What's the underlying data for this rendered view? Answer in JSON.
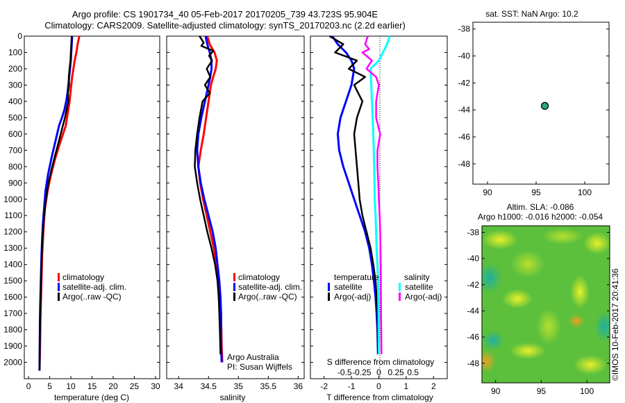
{
  "title": {
    "line1": "Argo profile: CS 1901734_40 05-Feb-2017 20170205_739 43.723S 95.904E",
    "line2": "Climatology: CARS2009. Satellite-adjusted climatology: synTS_20170203.nc (2.2d earlier)"
  },
  "colors": {
    "climatology": "#ff0000",
    "satellite_adj": "#0000ff",
    "argo": "#000000",
    "sal_satellite": "#00ffff",
    "sal_argo": "#ff00ff"
  },
  "depth_ticks": [
    "0",
    "100",
    "200",
    "300",
    "400",
    "500",
    "600",
    "700",
    "800",
    "900",
    "1000",
    "1100",
    "1200",
    "1300",
    "1400",
    "1500",
    "1600",
    "1700",
    "1800",
    "1900",
    "2000"
  ],
  "temperature_panel": {
    "xlabel": "temperature (deg C)",
    "xticks": [
      "0",
      "5",
      "10",
      "15",
      "20",
      "25",
      "30"
    ],
    "legend": [
      "climatology",
      "satellite-adj. clim.",
      "Argo(..raw -QC)"
    ]
  },
  "salinity_panel": {
    "xlabel": "salinity",
    "xticks": [
      "34",
      "34.5",
      "35",
      "35.5",
      "36"
    ],
    "legend": [
      "climatology",
      "satellite-adj. clim.",
      "Argo(..raw -QC)"
    ],
    "note1": "Argo Australia",
    "note2": "PI: Susan Wijffels"
  },
  "diff_panel": {
    "xlabel": "T difference from climatology",
    "xticks": [
      "-2",
      "-1",
      "0",
      "1",
      "2"
    ],
    "top_label": "S difference from climatology",
    "top_ticks": [
      "-0.5",
      "-0.25",
      "0",
      "0.25",
      "0.5"
    ],
    "legend_temp_title": "temperature",
    "legend_sal_title": "salinity",
    "legend_temp": [
      "satellite",
      "Argo(-adj)"
    ],
    "legend_sal": [
      "satellite",
      "Argo(-adj)"
    ]
  },
  "map_top": {
    "title": "sat. SST: NaN Argo: 10.2",
    "yticks": [
      "-38",
      "-40",
      "-42",
      "-44",
      "-46",
      "-48"
    ],
    "xticks": [
      "90",
      "95",
      "100"
    ],
    "marker_lon": 95.9,
    "marker_lat": -43.7
  },
  "map_bottom": {
    "title1": "Altim. SLA: -0.086",
    "title2": "Argo h1000: -0.016 h2000: -0.054",
    "yticks": [
      "-38",
      "-40",
      "-42",
      "-44",
      "-46",
      "-48"
    ],
    "xticks": [
      "90",
      "95",
      "100"
    ]
  },
  "watermark": "©IMOS 10-Feb-2017 20:41:36",
  "chart_data": [
    {
      "type": "line",
      "xlabel": "temperature (deg C)",
      "ylabel": "",
      "xlim": [
        -1,
        31
      ],
      "ylim": [
        2100,
        0
      ],
      "series": [
        {
          "name": "climatology",
          "x": [
            12,
            11.6,
            11.3,
            10.9,
            10.6,
            10.3,
            10.1,
            9.9,
            9.7,
            9.4,
            9.1,
            8.8,
            7.5,
            6.3,
            5.3,
            4.5,
            3.9,
            3.6,
            3.4,
            3.2,
            3.1,
            3.0,
            2.9,
            2.8,
            2.75,
            2.7,
            2.65,
            2.6
          ],
          "y": [
            0,
            50,
            100,
            150,
            200,
            250,
            300,
            350,
            400,
            450,
            500,
            550,
            650,
            750,
            850,
            950,
            1050,
            1150,
            1250,
            1350,
            1450,
            1550,
            1650,
            1750,
            1850,
            1950,
            2000,
            2050
          ]
        },
        {
          "name": "satellite-adj. clim.",
          "x": [
            10.3,
            10.2,
            10.1,
            10.0,
            9.8,
            9.6,
            9.4,
            9.2,
            8.9,
            8.5,
            7.9,
            7.2,
            6.3,
            5.4,
            4.6,
            4.0,
            3.7,
            3.4,
            3.2,
            3.05,
            2.95,
            2.85,
            2.75,
            2.7,
            2.65,
            2.6
          ],
          "y": [
            0,
            50,
            100,
            150,
            200,
            250,
            300,
            350,
            400,
            450,
            500,
            550,
            650,
            750,
            850,
            950,
            1050,
            1150,
            1250,
            1350,
            1450,
            1550,
            1650,
            1750,
            1900,
            2050
          ]
        },
        {
          "name": "Argo(..raw -QC)",
          "x": [
            10.2,
            10.1,
            10.0,
            9.9,
            9.7,
            9.5,
            9.6,
            9.3,
            9.4,
            9.0,
            8.6,
            8.1,
            7.6,
            6.6,
            5.6,
            4.7,
            4.1,
            3.7,
            3.4,
            3.2,
            3.05,
            2.95,
            2.85,
            2.75,
            2.7,
            2.65,
            2.6
          ],
          "y": [
            0,
            50,
            100,
            150,
            200,
            250,
            300,
            350,
            400,
            450,
            500,
            550,
            600,
            700,
            800,
            900,
            1000,
            1100,
            1200,
            1300,
            1400,
            1500,
            1600,
            1700,
            1800,
            1900,
            2050
          ]
        }
      ]
    },
    {
      "type": "line",
      "xlabel": "salinity",
      "ylabel": "",
      "xlim": [
        33.8,
        36.1
      ],
      "ylim": [
        2100,
        0
      ],
      "series": [
        {
          "name": "climatology",
          "x": [
            34.48,
            34.52,
            34.6,
            34.64,
            34.62,
            34.58,
            34.54,
            34.5,
            34.46,
            34.42,
            34.37,
            34.33,
            34.36,
            34.41,
            34.47,
            34.53,
            34.59,
            34.63,
            34.66,
            34.69,
            34.71,
            34.72,
            34.73
          ],
          "y": [
            0,
            50,
            100,
            150,
            200,
            250,
            300,
            400,
            500,
            600,
            700,
            800,
            900,
            1000,
            1100,
            1200,
            1300,
            1400,
            1500,
            1600,
            1700,
            1900,
            2000
          ]
        },
        {
          "name": "satellite-adj. clim.",
          "x": [
            34.45,
            34.48,
            34.52,
            34.55,
            34.55,
            34.53,
            34.5,
            34.44,
            34.38,
            34.33,
            34.31,
            34.33,
            34.37,
            34.43,
            34.5,
            34.57,
            34.62,
            34.65,
            34.68,
            34.7,
            34.71,
            34.71,
            34.72
          ],
          "y": [
            0,
            50,
            100,
            150,
            200,
            250,
            300,
            400,
            500,
            600,
            700,
            800,
            900,
            1000,
            1100,
            1200,
            1300,
            1400,
            1500,
            1600,
            1700,
            1900,
            2000
          ]
        },
        {
          "name": "Argo(..raw -QC)",
          "x": [
            34.35,
            34.42,
            34.38,
            34.58,
            34.51,
            34.56,
            34.47,
            34.53,
            34.44,
            34.52,
            34.4,
            34.35,
            34.31,
            34.28,
            34.27,
            34.31,
            34.36,
            34.42,
            34.48,
            34.55,
            34.61,
            34.65,
            34.67,
            34.68,
            34.69,
            34.7
          ],
          "y": [
            0,
            40,
            60,
            90,
            120,
            150,
            200,
            250,
            300,
            350,
            400,
            500,
            600,
            700,
            800,
            900,
            1000,
            1100,
            1200,
            1300,
            1400,
            1500,
            1600,
            1700,
            1800,
            1950
          ]
        }
      ]
    },
    {
      "type": "line",
      "xlabel": "T difference from climatology",
      "ylabel": "",
      "xlim": [
        -2.5,
        2.5
      ],
      "ylim": [
        2100,
        0
      ],
      "series": [
        {
          "name": "temperature satellite",
          "x": [
            -1.7,
            -1.5,
            -1.2,
            -1.0,
            -0.9,
            -1.0,
            -1.2,
            -1.4,
            -1.5,
            -1.45,
            -1.3,
            -1.1,
            -0.9,
            -0.7,
            -0.5,
            -0.35,
            -0.25,
            -0.18,
            -0.12,
            -0.08,
            -0.05,
            -0.03
          ],
          "y": [
            0,
            50,
            100,
            150,
            200,
            300,
            400,
            500,
            600,
            700,
            800,
            900,
            1000,
            1100,
            1200,
            1300,
            1400,
            1500,
            1600,
            1700,
            1800,
            1950
          ]
        },
        {
          "name": "temperature Argo(-adj)",
          "x": [
            -1.8,
            -1.3,
            -1.6,
            -0.8,
            -1.1,
            -0.5,
            -0.9,
            -0.6,
            -0.8,
            -0.9,
            -0.85,
            -0.8,
            -0.75,
            -0.7,
            -0.6,
            -0.45,
            -0.3,
            -0.2,
            -0.12,
            -0.08,
            -0.05,
            -0.03
          ],
          "y": [
            0,
            50,
            100,
            150,
            200,
            250,
            300,
            400,
            500,
            600,
            700,
            800,
            900,
            1000,
            1100,
            1200,
            1300,
            1400,
            1500,
            1600,
            1700,
            1950
          ]
        },
        {
          "name": "salinity satellite",
          "x": [
            0.4,
            0.3,
            0.15,
            0.0,
            -0.3,
            -0.25,
            -0.2,
            -0.17,
            -0.15,
            -0.12,
            -0.1,
            -0.08,
            -0.05,
            -0.03,
            -0.01,
            0.0
          ],
          "y": [
            0,
            50,
            100,
            150,
            200,
            400,
            600,
            800,
            1000,
            1100,
            1200,
            1300,
            1400,
            1500,
            1700,
            1950
          ]
        },
        {
          "name": "salinity Argo(-adj)",
          "x": [
            -0.4,
            -0.5,
            -0.35,
            -0.6,
            -0.25,
            -0.45,
            -0.1,
            0.0,
            -0.1,
            -0.1,
            0.05,
            -0.05,
            -0.05,
            -0.02,
            0.0,
            0.03,
            0.05,
            0.07,
            0.08,
            0.1
          ],
          "y": [
            0,
            50,
            80,
            100,
            150,
            200,
            250,
            300,
            400,
            500,
            600,
            700,
            800,
            900,
            1000,
            1100,
            1200,
            1400,
            1700,
            1950
          ]
        }
      ]
    },
    {
      "type": "scatter",
      "title": "sat. SST: NaN Argo: 10.2",
      "xlim": [
        88.5,
        102.5
      ],
      "ylim": [
        -49.5,
        -37.5
      ],
      "x": [
        95.9
      ],
      "y": [
        -43.7
      ]
    },
    {
      "type": "heatmap",
      "title": "Altim. SLA: -0.086",
      "xlim": [
        88.5,
        102.5
      ],
      "ylim": [
        -49.5,
        -37.5
      ]
    }
  ]
}
